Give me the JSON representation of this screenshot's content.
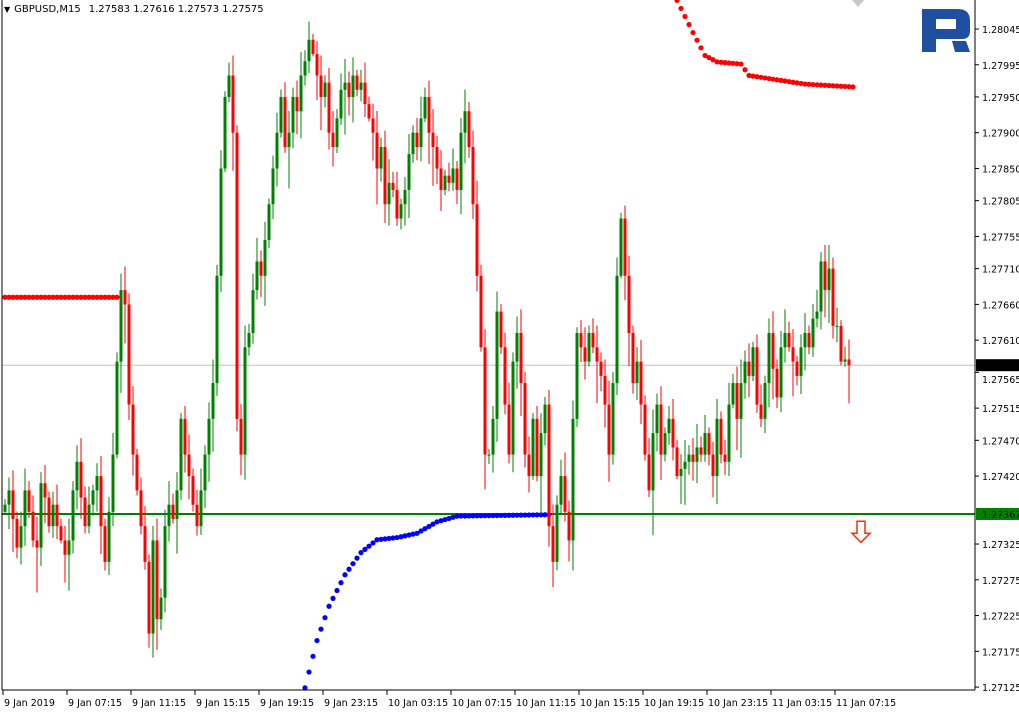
{
  "header": {
    "symbol": "GBPUSD,M15",
    "ohlc": "1.27583 1.27616 1.27573 1.27575",
    "menu_icon": "triangle-down-icon"
  },
  "logo": {
    "text": "R",
    "color": "#1f4fa0"
  },
  "colors": {
    "bull": "#008000",
    "bear": "#ff0000",
    "support_line": "#008000",
    "current_line": "#c0c0c0",
    "upper_dots": "#ff0000",
    "lower_dots": "#0000ff"
  },
  "chart_data": {
    "type": "candlestick",
    "timeframe": "M15",
    "ylim": [
      1.27125,
      1.28085
    ],
    "y_ticks": [
      "1.28045",
      "1.27995",
      "1.27950",
      "1.27900",
      "1.27850",
      "1.27805",
      "1.27755",
      "1.27710",
      "1.27660",
      "1.27610",
      "1.27565",
      "1.27515",
      "1.27470",
      "1.27420",
      "1.27325",
      "1.27275",
      "1.27225",
      "1.27175",
      "1.27125"
    ],
    "x_ticks": [
      "9 Jan 2019",
      "9 Jan 07:15",
      "9 Jan 11:15",
      "9 Jan 15:15",
      "9 Jan 19:15",
      "9 Jan 23:15",
      "10 Jan 03:15",
      "10 Jan 07:15",
      "10 Jan 11:15",
      "10 Jan 15:15",
      "10 Jan 19:15",
      "10 Jan 23:15",
      "11 Jan 03:15",
      "11 Jan 07:15"
    ],
    "close": [
      1.2738,
      1.274,
      1.2736,
      1.2732,
      1.2735,
      1.274,
      1.2737,
      1.2733,
      1.2732,
      1.2741,
      1.2739,
      1.2735,
      1.2738,
      1.2735,
      1.2733,
      1.2731,
      1.2733,
      1.274,
      1.2744,
      1.2739,
      1.2735,
      1.2738,
      1.274,
      1.2742,
      1.2735,
      1.273,
      1.2737,
      1.2745,
      1.2758,
      1.2768,
      1.2766,
      1.2752,
      1.2745,
      1.274,
      1.2735,
      1.273,
      1.272,
      1.2733,
      1.2722,
      1.2725,
      1.2735,
      1.2738,
      1.2736,
      1.274,
      1.275,
      1.2745,
      1.2742,
      1.2738,
      1.2735,
      1.274,
      1.2745,
      1.275,
      1.2755,
      1.277,
      1.2785,
      1.2795,
      1.2798,
      1.279,
      1.275,
      1.2745,
      1.276,
      1.2762,
      1.2768,
      1.2772,
      1.277,
      1.2775,
      1.278,
      1.2785,
      1.279,
      1.2795,
      1.2788,
      1.279,
      1.2795,
      1.2793,
      1.2798,
      1.28,
      1.2803,
      1.2801,
      1.2798,
      1.2795,
      1.2797,
      1.279,
      1.2788,
      1.2792,
      1.2796,
      1.2797,
      1.2795,
      1.2798,
      1.2796,
      1.2797,
      1.2794,
      1.2792,
      1.279,
      1.2785,
      1.2788,
      1.278,
      1.2783,
      1.2782,
      1.2778,
      1.278,
      1.2782,
      1.2787,
      1.279,
      1.2788,
      1.2792,
      1.2795,
      1.279,
      1.2788,
      1.2785,
      1.2782,
      1.2784,
      1.2783,
      1.2785,
      1.2782,
      1.279,
      1.2793,
      1.2788,
      1.278,
      1.277,
      1.276,
      1.2745,
      1.2745,
      1.275,
      1.2765,
      1.276,
      1.2752,
      1.2745,
      1.2758,
      1.2762,
      1.2755,
      1.2745,
      1.2742,
      1.275,
      1.2742,
      1.2748,
      1.2752,
      1.2735,
      1.273,
      1.2738,
      1.2742,
      1.2737,
      1.2733,
      1.275,
      1.2762,
      1.276,
      1.2758,
      1.2762,
      1.276,
      1.2758,
      1.2756,
      1.2752,
      1.2745,
      1.2755,
      1.277,
      1.2778,
      1.277,
      1.2762,
      1.2755,
      1.2758,
      1.2752,
      1.2745,
      1.274,
      1.2748,
      1.2752,
      1.2745,
      1.2748,
      1.275,
      1.2746,
      1.2742,
      1.2743,
      1.2744,
      1.2745,
      1.2744,
      1.2746,
      1.2745,
      1.2748,
      1.2745,
      1.2742,
      1.275,
      1.2745,
      1.2744,
      1.2752,
      1.2755,
      1.275,
      1.2755,
      1.2758,
      1.2756,
      1.276,
      1.2752,
      1.275,
      1.2755,
      1.2762,
      1.2757,
      1.2753,
      1.276,
      1.2762,
      1.276,
      1.2758,
      1.2756,
      1.276,
      1.2762,
      1.276,
      1.2764,
      1.2765,
      1.2772,
      1.2768,
      1.2771,
      1.2763,
      1.2763,
      1.2758,
      1.27583,
      1.27575
    ],
    "current_price": "1.27575",
    "support_level": "1.27367",
    "upper_dots": [
      [
        0,
        1.2767
      ],
      [
        28,
        1.2767
      ]
    ],
    "upper_dots_right": [
      [
        168,
        1.28085
      ],
      [
        172,
        1.2804
      ],
      [
        175,
        1.28008
      ],
      [
        178,
        1.27999
      ],
      [
        184,
        1.27996
      ],
      [
        186,
        1.2798
      ],
      [
        200,
        1.27968
      ],
      [
        212,
        1.27964
      ]
    ],
    "lower_dots": [
      [
        75,
        1.27124
      ],
      [
        78,
        1.2719
      ],
      [
        81,
        1.27238
      ],
      [
        85,
        1.27282
      ],
      [
        89,
        1.27313
      ],
      [
        93,
        1.27331
      ],
      [
        98,
        1.27334
      ],
      [
        103,
        1.2734
      ],
      [
        108,
        1.27356
      ],
      [
        113,
        1.27364
      ],
      [
        136,
        1.27366
      ]
    ],
    "sell_signal": {
      "bar": 214,
      "price": 1.2734,
      "icon": "down-arrow-icon"
    }
  }
}
